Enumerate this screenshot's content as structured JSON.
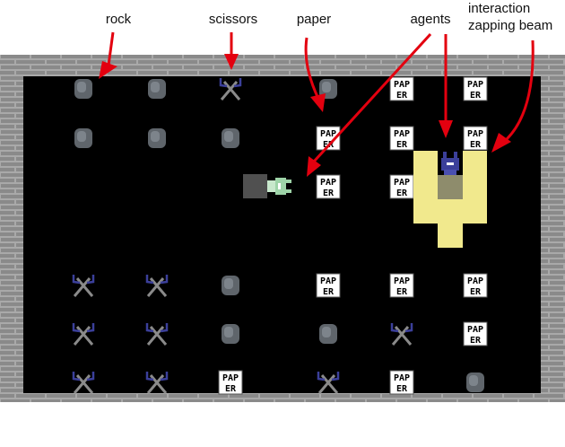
{
  "labels": {
    "rock": "rock",
    "scissors": "scissors",
    "paper": "paper",
    "agents": "agents",
    "beam_line1": "interaction",
    "beam_line2": "zapping beam"
  },
  "sprites": {
    "paper_text": [
      "PAP",
      "ER"
    ]
  },
  "grid": [
    [
      "rock",
      "rock",
      "scissors",
      "rock",
      "paper",
      "paper"
    ],
    [
      "rock",
      "rock",
      "rock",
      "paper",
      "paper",
      "paper"
    ],
    [
      null,
      null,
      null,
      "paper",
      "paper",
      null
    ],
    [
      "scissors",
      "scissors",
      "rock",
      "paper",
      "paper",
      "paper"
    ],
    [
      "scissors",
      "scissors",
      "rock",
      "rock",
      "scissors",
      "paper"
    ],
    [
      "scissors",
      "scissors",
      "paper",
      "scissors",
      "paper",
      "rock"
    ]
  ],
  "agents": [
    {
      "name": "green-agent",
      "color": "#9ed4a8",
      "facing": "right"
    },
    {
      "name": "blue-agent",
      "color": "#3b3f9a",
      "facing": "down"
    }
  ],
  "colors": {
    "arrow": "#e3000f",
    "beam": "#f1e98d",
    "floor": "#000000",
    "wall": "#8c8c8c",
    "wall_mortar": "#a8a8a8"
  }
}
